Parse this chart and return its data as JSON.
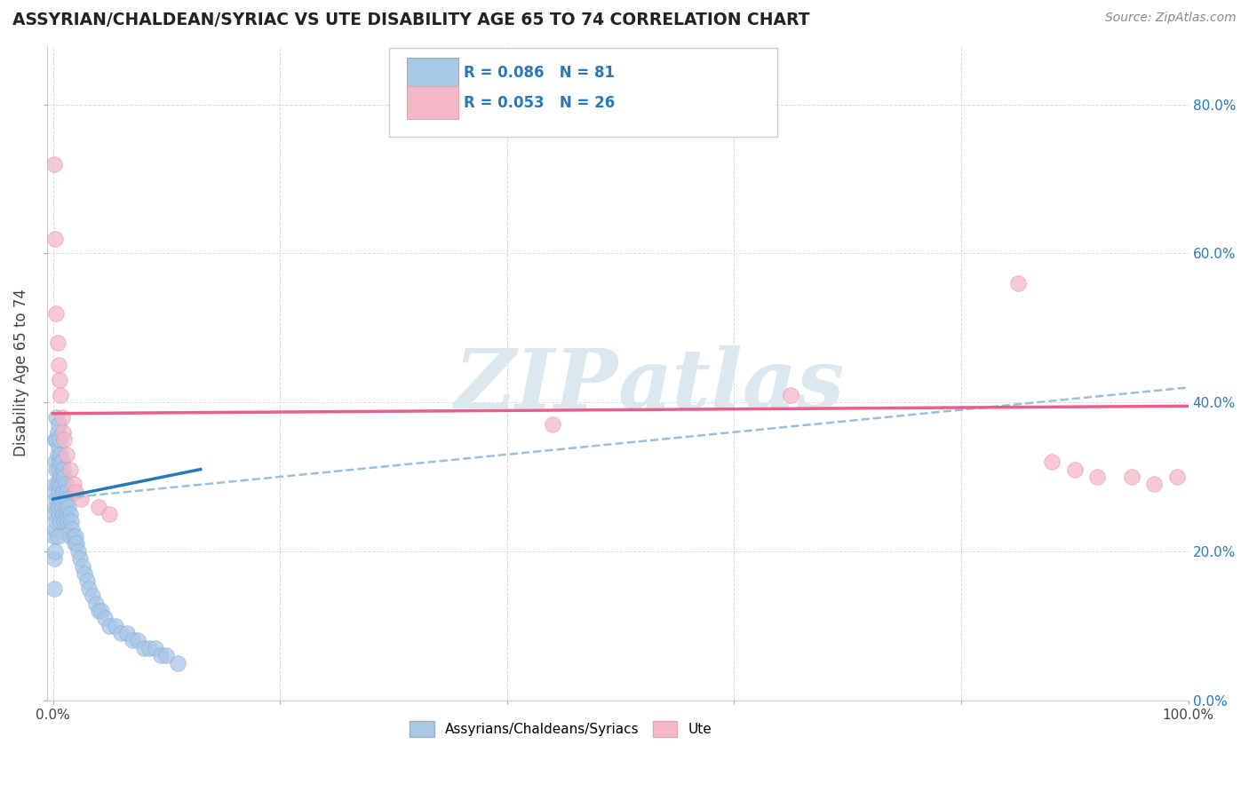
{
  "title": "ASSYRIAN/CHALDEAN/SYRIAC VS UTE DISABILITY AGE 65 TO 74 CORRELATION CHART",
  "source": "Source: ZipAtlas.com",
  "ylabel": "Disability Age 65 to 74",
  "legend_label1": "Assyrians/Chaldeans/Syriacs",
  "legend_label2": "Ute",
  "R1": 0.086,
  "N1": 81,
  "R2": 0.053,
  "N2": 26,
  "xlim": [
    -0.005,
    1.0
  ],
  "ylim": [
    0.0,
    0.88
  ],
  "xticks": [
    0.0,
    0.2,
    0.4,
    0.6,
    0.8,
    1.0
  ],
  "yticks_right": [
    0.0,
    0.2,
    0.4,
    0.6,
    0.8
  ],
  "color_blue": "#a8c8e8",
  "color_pink": "#f4b8c8",
  "color_blue_line": "#2878b8",
  "color_pink_line": "#e8608a",
  "color_dash": "#90b8d8",
  "background_color": "#ffffff",
  "grid_color": "#cccccc",
  "watermark_color": "#dce8f0",
  "blue_x": [
    0.001,
    0.001,
    0.001,
    0.001,
    0.001,
    0.002,
    0.002,
    0.002,
    0.002,
    0.002,
    0.002,
    0.003,
    0.003,
    0.003,
    0.003,
    0.003,
    0.004,
    0.004,
    0.004,
    0.004,
    0.004,
    0.005,
    0.005,
    0.005,
    0.005,
    0.005,
    0.006,
    0.006,
    0.006,
    0.006,
    0.007,
    0.007,
    0.007,
    0.007,
    0.008,
    0.008,
    0.008,
    0.009,
    0.009,
    0.009,
    0.01,
    0.01,
    0.01,
    0.011,
    0.011,
    0.012,
    0.012,
    0.013,
    0.013,
    0.014,
    0.015,
    0.015,
    0.016,
    0.017,
    0.018,
    0.019,
    0.02,
    0.021,
    0.022,
    0.024,
    0.026,
    0.028,
    0.03,
    0.032,
    0.035,
    0.038,
    0.04,
    0.043,
    0.046,
    0.05,
    0.055,
    0.06,
    0.065,
    0.07,
    0.075,
    0.08,
    0.085,
    0.09,
    0.095,
    0.1,
    0.11
  ],
  "blue_y": [
    0.28,
    0.25,
    0.22,
    0.19,
    0.15,
    0.35,
    0.32,
    0.29,
    0.26,
    0.23,
    0.2,
    0.38,
    0.35,
    0.31,
    0.27,
    0.24,
    0.36,
    0.33,
    0.29,
    0.26,
    0.22,
    0.37,
    0.34,
    0.31,
    0.28,
    0.25,
    0.35,
    0.32,
    0.29,
    0.26,
    0.33,
    0.3,
    0.27,
    0.24,
    0.32,
    0.29,
    0.26,
    0.31,
    0.28,
    0.25,
    0.3,
    0.27,
    0.24,
    0.29,
    0.26,
    0.28,
    0.25,
    0.27,
    0.24,
    0.26,
    0.25,
    0.22,
    0.24,
    0.23,
    0.22,
    0.21,
    0.22,
    0.21,
    0.2,
    0.19,
    0.18,
    0.17,
    0.16,
    0.15,
    0.14,
    0.13,
    0.12,
    0.12,
    0.11,
    0.1,
    0.1,
    0.09,
    0.09,
    0.08,
    0.08,
    0.07,
    0.07,
    0.07,
    0.06,
    0.06,
    0.05
  ],
  "pink_x": [
    0.001,
    0.002,
    0.003,
    0.004,
    0.005,
    0.006,
    0.007,
    0.008,
    0.009,
    0.01,
    0.012,
    0.015,
    0.018,
    0.02,
    0.025,
    0.04,
    0.05,
    0.44,
    0.65,
    0.85,
    0.88,
    0.9,
    0.92,
    0.95,
    0.97,
    0.99
  ],
  "pink_y": [
    0.72,
    0.62,
    0.52,
    0.48,
    0.45,
    0.43,
    0.41,
    0.38,
    0.36,
    0.35,
    0.33,
    0.31,
    0.29,
    0.28,
    0.27,
    0.26,
    0.25,
    0.37,
    0.41,
    0.56,
    0.32,
    0.31,
    0.3,
    0.3,
    0.29,
    0.3
  ],
  "blue_line_x": [
    0.0,
    0.13
  ],
  "blue_line_y": [
    0.27,
    0.31
  ],
  "dash_line_x": [
    0.0,
    1.0
  ],
  "dash_line_y": [
    0.27,
    0.42
  ],
  "pink_line_x": [
    0.0,
    1.0
  ],
  "pink_line_y": [
    0.385,
    0.395
  ]
}
